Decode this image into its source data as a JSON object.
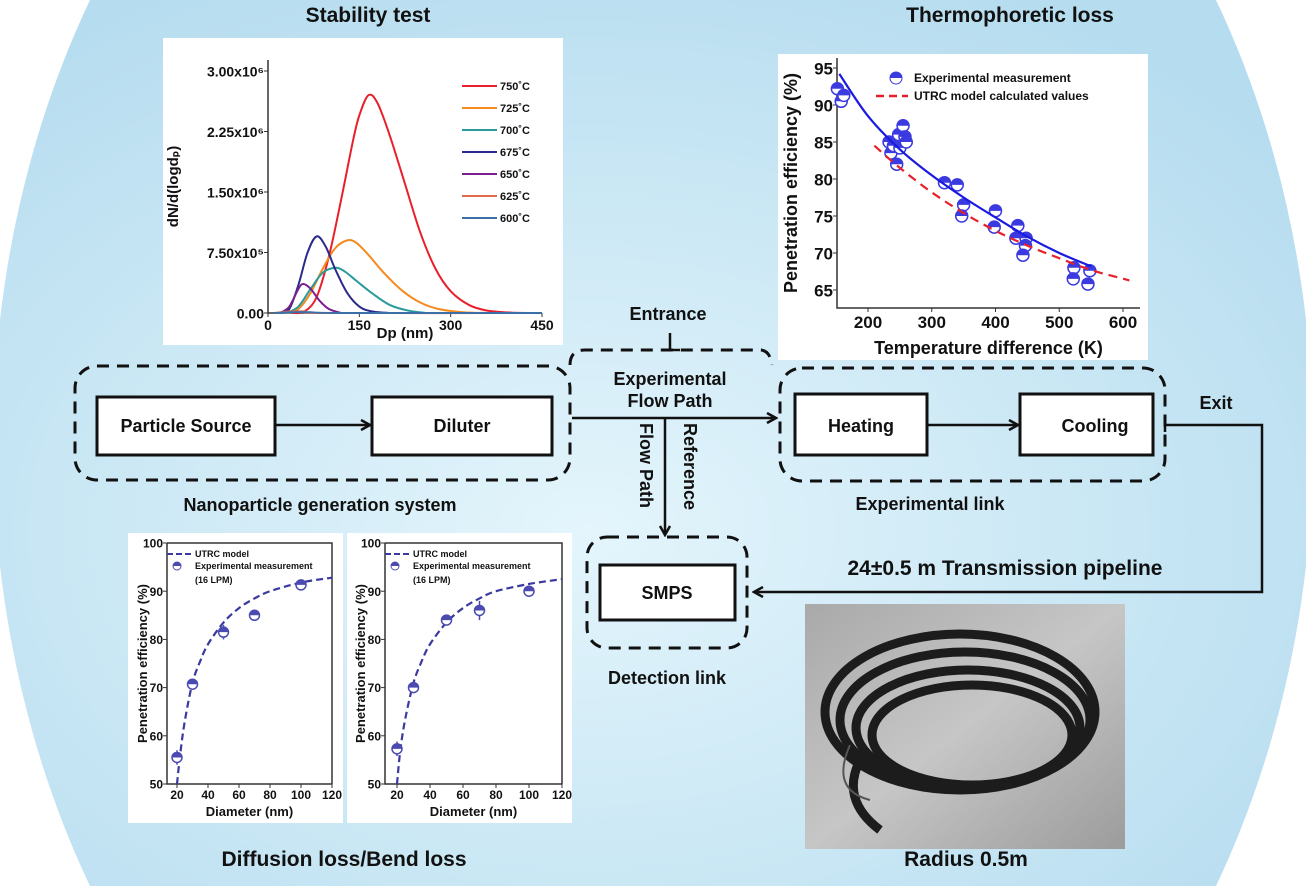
{
  "titles": {
    "stability": "Stability test",
    "thermo": "Thermophoretic loss",
    "diffusion": "Diffusion loss/Bend loss",
    "radius": "Radius 0.5m"
  },
  "flow": {
    "particle_source": "Particle Source",
    "diluter": "Diluter",
    "generation_label": "Nanoparticle generation system",
    "entrance": "Entrance",
    "exp_flow_line1": "Experimental",
    "exp_flow_line2": "Flow Path",
    "flow_path": "Flow Path",
    "reference": "Reference",
    "heating": "Heating",
    "cooling": "Cooling",
    "exp_link": "Experimental link",
    "exit": "Exit",
    "pipeline": "24±0.5 m Transmission pipeline",
    "smps": "SMPS",
    "detection_link": "Detection link"
  },
  "colors": {
    "background": "#c4e3f3",
    "box_stroke": "#111111"
  },
  "chart_data": [
    {
      "type": "line",
      "xlabel": "Dp (nm)",
      "ylabel": "dN/d(logdₚ)",
      "xlim": [
        0,
        450
      ],
      "ylim": [
        0,
        3000000
      ],
      "xticks": [
        "0",
        "150",
        "300",
        "450"
      ],
      "xtick_values": [
        0,
        150,
        300,
        450
      ],
      "yticks": [
        "0.00",
        "7.50x10⁵",
        "1.50x10⁶",
        "2.25x10⁶",
        "3.00x10⁶"
      ],
      "ytick_values": [
        0,
        750000,
        1500000,
        2250000,
        3000000
      ],
      "legend": "top-right",
      "series": [
        {
          "name": "750˚C",
          "color": "#e8202a",
          "x": [
            40,
            60,
            80,
            100,
            120,
            140,
            150,
            165,
            180,
            200,
            225,
            250,
            275,
            300,
            330,
            360,
            400,
            450
          ],
          "y": [
            0,
            20000,
            200000,
            700000,
            1400000,
            2150000,
            2450000,
            2700000,
            2600000,
            2200000,
            1600000,
            1000000,
            550000,
            270000,
            100000,
            30000,
            5000,
            0
          ]
        },
        {
          "name": "725˚C",
          "color": "#f58a1f",
          "x": [
            30,
            50,
            70,
            90,
            110,
            130,
            145,
            165,
            190,
            220,
            250,
            280,
            320,
            360
          ],
          "y": [
            0,
            50000,
            250000,
            550000,
            800000,
            900000,
            870000,
            720000,
            500000,
            280000,
            130000,
            50000,
            10000,
            0
          ]
        },
        {
          "name": "700˚C",
          "color": "#2a9a9a",
          "x": [
            30,
            50,
            70,
            90,
            110,
            125,
            145,
            170,
            200,
            230,
            260
          ],
          "y": [
            0,
            80000,
            300000,
            500000,
            560000,
            520000,
            400000,
            250000,
            100000,
            30000,
            0
          ]
        },
        {
          "name": "675˚C",
          "color": "#2b2a8c",
          "x": [
            20,
            35,
            50,
            65,
            80,
            95,
            110,
            130,
            150,
            170,
            200
          ],
          "y": [
            0,
            50000,
            350000,
            750000,
            950000,
            820000,
            550000,
            250000,
            80000,
            20000,
            0
          ]
        },
        {
          "name": "650˚C",
          "color": "#7a1f8c",
          "x": [
            20,
            35,
            50,
            58,
            70,
            85,
            100,
            120
          ],
          "y": [
            0,
            80000,
            300000,
            360000,
            300000,
            150000,
            50000,
            0
          ]
        },
        {
          "name": "625˚C",
          "color": "#e06a4a",
          "x": [
            10,
            40,
            60,
            100,
            450
          ],
          "y": [
            0,
            20000,
            20000,
            0,
            0
          ]
        },
        {
          "name": "600˚C",
          "color": "#3a6fa8",
          "x": [
            10,
            40,
            70,
            120,
            450
          ],
          "y": [
            0,
            10000,
            10000,
            0,
            0
          ]
        }
      ]
    },
    {
      "type": "scatter",
      "xlabel": "Temperature difference (K)",
      "ylabel": "Penetration efficiency (%)",
      "xticks": [
        "200",
        "300",
        "400",
        "500",
        "600"
      ],
      "xtick_values": [
        200,
        300,
        400,
        500,
        600
      ],
      "yticks": [
        "65",
        "70",
        "75",
        "80",
        "85",
        "90",
        "95"
      ],
      "ytick_values": [
        65,
        70,
        75,
        80,
        85,
        90,
        95
      ],
      "legend": "top-right",
      "series": [
        {
          "name": "Experimental measurement",
          "kind": "points",
          "color": "#3a3ae0",
          "x": [
            152,
            158,
            162,
            233,
            236,
            240,
            248,
            250,
            245,
            255,
            258,
            260,
            320,
            340,
            350,
            347,
            400,
            398,
            435,
            432,
            448,
            447,
            443,
            523,
            522,
            548,
            545
          ],
          "y": [
            92.2,
            90.5,
            91.3,
            85,
            83.5,
            84.5,
            86,
            84.2,
            82,
            87.2,
            85.7,
            85,
            79.5,
            79.2,
            76.5,
            75,
            75.7,
            73.5,
            73.7,
            72,
            72,
            71,
            69.7,
            68,
            66.5,
            67.6,
            65.8
          ]
        },
        {
          "kind": "fit",
          "color": "#1a1ae0",
          "x": [
            155,
            200,
            250,
            300,
            350,
            400,
            450,
            500,
            550
          ],
          "y": [
            94.2,
            88.5,
            84,
            80.5,
            77.5,
            74.8,
            72.2,
            70,
            68.2
          ]
        },
        {
          "name": "UTRC model calculated values",
          "kind": "dashed",
          "color": "#e8202a",
          "x": [
            210,
            250,
            300,
            350,
            400,
            450,
            500,
            550,
            610
          ],
          "y": [
            84.5,
            81.5,
            78.2,
            75.4,
            73,
            71,
            69.3,
            67.7,
            66.3
          ]
        }
      ]
    },
    {
      "type": "scatter",
      "xlabel": "Diameter (nm)",
      "ylabel": "Penetration efficiency (%)",
      "xticks": [
        "20",
        "40",
        "60",
        "80",
        "100",
        "120"
      ],
      "xtick_values": [
        20,
        40,
        60,
        80,
        100,
        120
      ],
      "yticks": [
        "50",
        "60",
        "70",
        "80",
        "90",
        "100"
      ],
      "ytick_values": [
        50,
        60,
        70,
        80,
        90,
        100
      ],
      "legend": "top-left",
      "series": [
        {
          "name": "UTRC model",
          "kind": "dashed",
          "color": "#3a3aa0",
          "x": [
            20,
            22,
            25,
            30,
            35,
            40,
            50,
            60,
            70,
            80,
            100,
            120
          ],
          "y": [
            50,
            56,
            63,
            71,
            75.5,
            79,
            83.5,
            86.5,
            88.5,
            90,
            91.8,
            92.8
          ]
        },
        {
          "name": "Experimental measurement",
          "name2": "(16 LPM)",
          "kind": "points",
          "color": "#4a4ab0",
          "x": [
            20,
            30,
            50,
            70,
            100
          ],
          "y": [
            55.5,
            70.7,
            81.5,
            85,
            91.3
          ],
          "err": [
            1.5,
            1,
            1.5,
            0.5,
            0.5
          ]
        }
      ]
    },
    {
      "type": "scatter",
      "xlabel": "Diameter (nm)",
      "ylabel": "Penetration efficiency (%)",
      "xticks": [
        "20",
        "40",
        "60",
        "80",
        "100",
        "120"
      ],
      "xtick_values": [
        20,
        40,
        60,
        80,
        100,
        120
      ],
      "yticks": [
        "50",
        "60",
        "70",
        "80",
        "90",
        "100"
      ],
      "ytick_values": [
        50,
        60,
        70,
        80,
        90,
        100
      ],
      "legend": "top-left",
      "series": [
        {
          "name": "UTRC model",
          "kind": "dashed",
          "color": "#3a3aa0",
          "x": [
            20,
            22,
            25,
            30,
            35,
            40,
            50,
            60,
            70,
            80,
            100,
            120
          ],
          "y": [
            50,
            57,
            63.5,
            71,
            75.5,
            79,
            83.5,
            86.5,
            88.5,
            90,
            91.5,
            92.5
          ]
        },
        {
          "name": "Experimental measurement",
          "name2": "(16 LPM)",
          "kind": "points",
          "color": "#4a4ab0",
          "x": [
            20,
            30,
            50,
            70,
            100
          ],
          "y": [
            57.3,
            70,
            84,
            86,
            90
          ],
          "err": [
            1.5,
            1,
            0.7,
            2,
            0.7
          ]
        }
      ]
    }
  ]
}
